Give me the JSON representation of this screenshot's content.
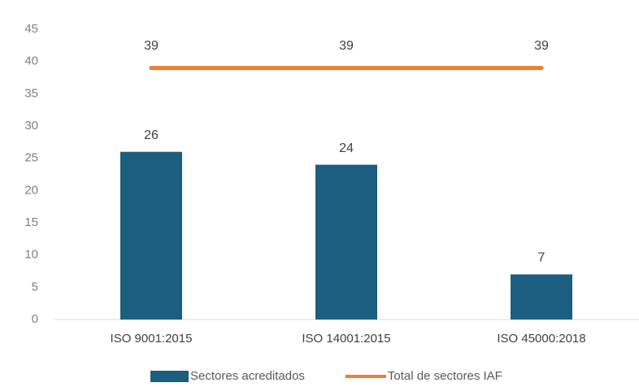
{
  "chart_data": {
    "type": "bar",
    "categories": [
      "ISO 9001:2015",
      "ISO 14001:2015",
      "ISO 45000:2018"
    ],
    "series": [
      {
        "name": "Sectores acreditados",
        "type": "bar",
        "color": "#1b5e80",
        "values": [
          26,
          24,
          7
        ]
      },
      {
        "name": "Total de sectores IAF",
        "type": "line",
        "color": "#ed7d31",
        "values": [
          39,
          39,
          39
        ]
      }
    ],
    "ylim": [
      0,
      45
    ],
    "yticks": [
      0,
      5,
      10,
      15,
      20,
      25,
      30,
      35,
      40,
      45
    ],
    "grid": false,
    "legend": "bottom"
  }
}
